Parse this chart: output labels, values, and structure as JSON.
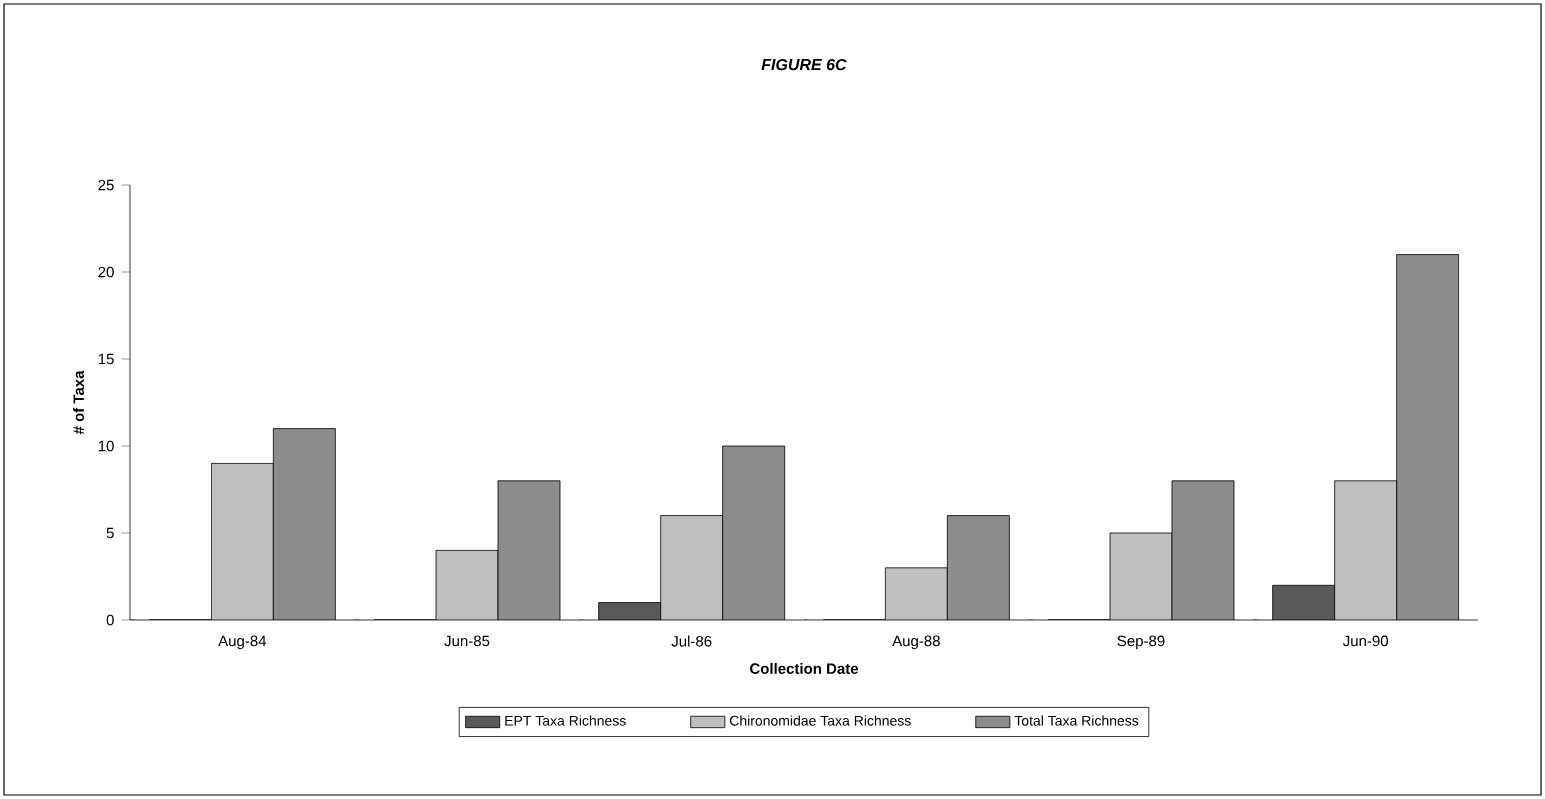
{
  "chart_data": {
    "type": "bar",
    "title": "*FIGURE 6C*",
    "xlabel": "Collection Date",
    "ylabel": "# of Taxa",
    "categories": [
      "Aug-84",
      "Jun-85",
      "Jul-86",
      "Aug-88",
      "Sep-89",
      "Jun-90"
    ],
    "series": [
      {
        "name": "EPT Taxa Richness",
        "color": "#595959",
        "values": [
          0,
          0,
          1,
          0,
          0,
          2
        ]
      },
      {
        "name": "Chironomidae Taxa Richness",
        "color": "#bfbfbf",
        "values": [
          9,
          4,
          6,
          3,
          5,
          8
        ]
      },
      {
        "name": "Total Taxa Richness",
        "color": "#8c8c8c",
        "values": [
          11,
          8,
          10,
          6,
          8,
          21
        ]
      }
    ],
    "ylim": [
      0,
      25
    ],
    "yticks": [
      0,
      5,
      10,
      15,
      20,
      25
    ],
    "legend": "bottom"
  }
}
